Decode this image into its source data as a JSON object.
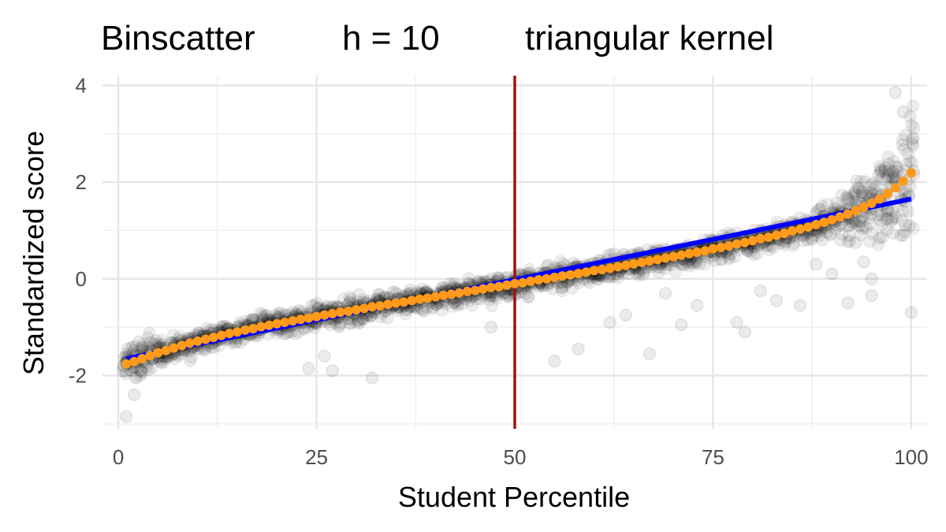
{
  "chart_data": {
    "type": "scatter",
    "title_parts": [
      "Binscatter",
      "h = 10",
      "triangular kernel"
    ],
    "xlabel": "Student Percentile",
    "ylabel": "Standardized score",
    "xlim": [
      -2,
      102
    ],
    "ylim": [
      -3.1,
      4.2
    ],
    "x_ticks": [
      0,
      25,
      50,
      75,
      100
    ],
    "y_ticks": [
      -2,
      0,
      2,
      4
    ],
    "grid": true,
    "legend": "none",
    "vline": {
      "x": 50,
      "color": "#a50f15"
    },
    "colors": {
      "raw_points": "#000000",
      "linear_fit": "#0000ff",
      "binscatter": "#ff9a1a"
    },
    "series": [
      {
        "kind": "raw_scatter",
        "note": "approx 2000 semi-transparent points, ~20 per percentile; spread grows near the top",
        "outliers": [
          [
            1,
            -2.85
          ],
          [
            2,
            -2.4
          ],
          [
            24,
            -1.85
          ],
          [
            26,
            -1.6
          ],
          [
            27,
            -1.9
          ],
          [
            32,
            -2.05
          ],
          [
            47,
            -1.0
          ],
          [
            50,
            -0.3
          ],
          [
            55,
            -1.7
          ],
          [
            58,
            -1.45
          ],
          [
            62,
            -0.9
          ],
          [
            64,
            -0.75
          ],
          [
            67,
            -1.55
          ],
          [
            69,
            -0.3
          ],
          [
            71,
            -0.95
          ],
          [
            73,
            -0.55
          ],
          [
            78,
            -0.9
          ],
          [
            79,
            -1.1
          ],
          [
            81,
            -0.25
          ],
          [
            83,
            -0.45
          ],
          [
            86,
            -0.55
          ],
          [
            88,
            0.3
          ],
          [
            90,
            0.1
          ],
          [
            92,
            -0.5
          ],
          [
            93,
            0.75
          ],
          [
            94,
            0.35
          ],
          [
            95,
            -0.35
          ],
          [
            95,
            0.0
          ],
          [
            96,
            0.85
          ],
          [
            97,
            1.45
          ],
          [
            98,
            3.85
          ],
          [
            99,
            3.45
          ],
          [
            99,
            0.9
          ],
          [
            100,
            -0.7
          ]
        ]
      },
      {
        "kind": "linear_fit",
        "x": [
          1,
          100
        ],
        "y": [
          -1.65,
          1.65
        ]
      },
      {
        "kind": "binscatter",
        "x": [
          1,
          2,
          3,
          4,
          5,
          6,
          7,
          8,
          9,
          10,
          11,
          12,
          13,
          14,
          15,
          16,
          17,
          18,
          19,
          20,
          21,
          22,
          23,
          24,
          25,
          26,
          27,
          28,
          29,
          30,
          31,
          32,
          33,
          34,
          35,
          36,
          37,
          38,
          39,
          40,
          41,
          42,
          43,
          44,
          45,
          46,
          47,
          48,
          49,
          50,
          51,
          52,
          53,
          54,
          55,
          56,
          57,
          58,
          59,
          60,
          61,
          62,
          63,
          64,
          65,
          66,
          67,
          68,
          69,
          70,
          71,
          72,
          73,
          74,
          75,
          76,
          77,
          78,
          79,
          80,
          81,
          82,
          83,
          84,
          85,
          86,
          87,
          88,
          89,
          90,
          91,
          92,
          93,
          94,
          95,
          96,
          97,
          98,
          99,
          100
        ],
        "y": [
          -1.76,
          -1.71,
          -1.65,
          -1.59,
          -1.53,
          -1.48,
          -1.43,
          -1.38,
          -1.33,
          -1.29,
          -1.25,
          -1.21,
          -1.17,
          -1.13,
          -1.1,
          -1.06,
          -1.03,
          -0.99,
          -0.96,
          -0.93,
          -0.9,
          -0.87,
          -0.84,
          -0.81,
          -0.78,
          -0.75,
          -0.72,
          -0.69,
          -0.67,
          -0.64,
          -0.61,
          -0.58,
          -0.56,
          -0.53,
          -0.5,
          -0.48,
          -0.45,
          -0.42,
          -0.4,
          -0.37,
          -0.34,
          -0.32,
          -0.29,
          -0.26,
          -0.24,
          -0.21,
          -0.18,
          -0.16,
          -0.13,
          -0.1,
          -0.08,
          -0.05,
          -0.02,
          0,
          0.03,
          0.06,
          0.08,
          0.11,
          0.14,
          0.17,
          0.19,
          0.22,
          0.25,
          0.28,
          0.31,
          0.34,
          0.37,
          0.4,
          0.43,
          0.46,
          0.49,
          0.52,
          0.55,
          0.58,
          0.62,
          0.65,
          0.68,
          0.72,
          0.75,
          0.79,
          0.83,
          0.86,
          0.9,
          0.94,
          0.99,
          1.03,
          1.07,
          1.12,
          1.17,
          1.22,
          1.28,
          1.34,
          1.41,
          1.48,
          1.56,
          1.65,
          1.76,
          1.88,
          2.02,
          2.19
        ]
      }
    ]
  }
}
